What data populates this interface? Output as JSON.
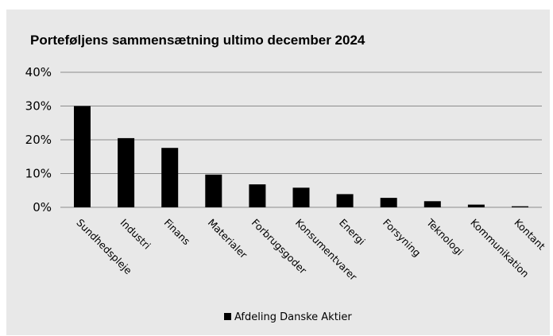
{
  "chart_data": {
    "type": "bar",
    "title": "Porteføljens sammensætning ultimo december 2024",
    "xlabel": "",
    "ylabel": "",
    "categories": [
      "Sundhedspleje",
      "Industri",
      "Finans",
      "Materialer",
      "Forbrugsgoder",
      "Konsumentvarer",
      "Energi",
      "Forsyning",
      "Teknologi",
      "Kommunikation",
      "Kontant"
    ],
    "series": [
      {
        "name": "Afdeling Danske Aktier",
        "values": [
          30.0,
          20.5,
          17.6,
          9.7,
          6.8,
          5.8,
          3.9,
          2.8,
          1.8,
          0.8,
          0.3
        ],
        "color": "#000000"
      }
    ],
    "ylim": [
      0,
      40
    ],
    "yticks": [
      "0%",
      "10%",
      "20%",
      "30%",
      "40%"
    ],
    "grid": true,
    "legend_position": "bottom"
  }
}
